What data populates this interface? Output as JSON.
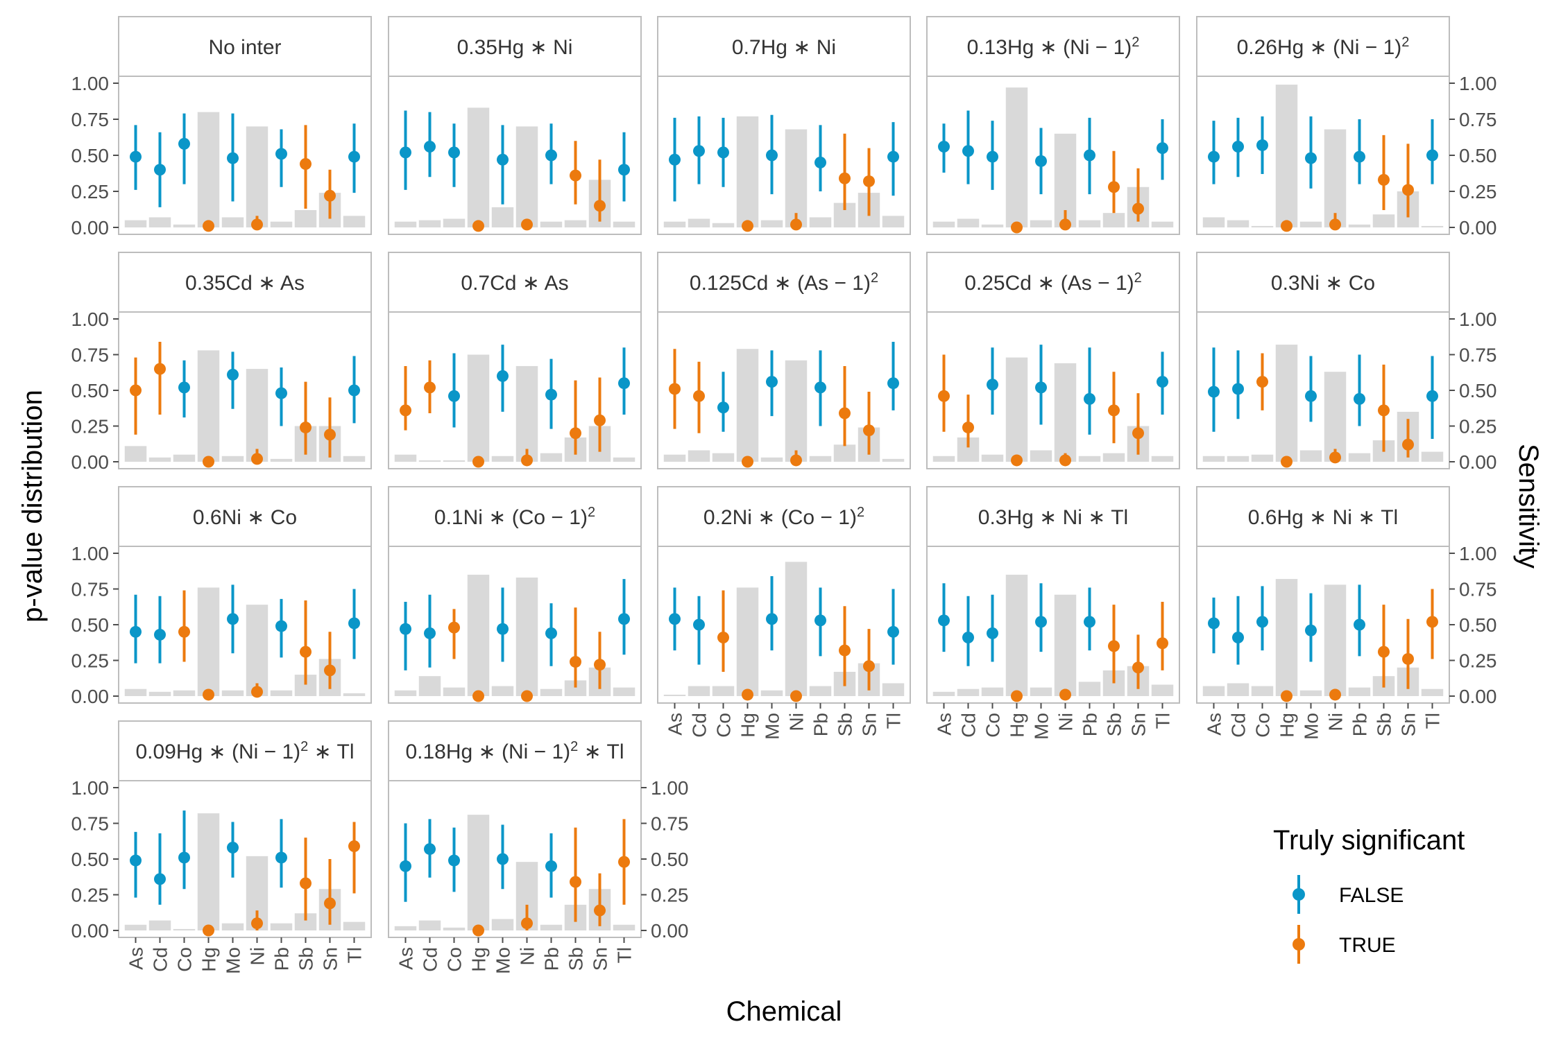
{
  "chart_data": {
    "type": "faceted point-range with bars",
    "ylabel": "p-value distribution",
    "y2label": "Sensitivity",
    "xlabel": "Chemical",
    "ylim": [
      0,
      1
    ],
    "yticks": [
      "0.00",
      "0.25",
      "0.50",
      "0.75",
      "1.00"
    ],
    "categories": [
      "As",
      "Cd",
      "Co",
      "Hg",
      "Mo",
      "Ni",
      "Pb",
      "Sb",
      "Sn",
      "Tl"
    ],
    "colors": {
      "FALSE": "#0a96c8",
      "TRUE": "#ec7a0e",
      "bar": "#d9d9d9"
    },
    "legend": {
      "title": "Truly significant",
      "position": "bottom-right",
      "entries": [
        {
          "key": "FALSE",
          "label": "FALSE"
        },
        {
          "key": "TRUE",
          "label": "TRUE"
        }
      ]
    },
    "panels": [
      {
        "title": [
          "No inter"
        ],
        "sig": [
          0,
          0,
          0,
          1,
          0,
          1,
          0,
          1,
          1,
          0
        ],
        "mid": [
          0.49,
          0.4,
          0.58,
          0.01,
          0.48,
          0.02,
          0.51,
          0.44,
          0.22,
          0.49
        ],
        "lo": [
          0.26,
          0.14,
          0.3,
          0.0,
          0.18,
          0.0,
          0.28,
          0.13,
          0.06,
          0.24
        ],
        "hi": [
          0.71,
          0.66,
          0.79,
          0.03,
          0.79,
          0.08,
          0.68,
          0.71,
          0.4,
          0.72
        ],
        "bar": [
          0.05,
          0.07,
          0.02,
          0.8,
          0.07,
          0.7,
          0.04,
          0.12,
          0.24,
          0.08
        ]
      },
      {
        "title": [
          "0.35Hg ∗ Ni"
        ],
        "sig": [
          0,
          0,
          0,
          1,
          0,
          1,
          0,
          1,
          1,
          0
        ],
        "mid": [
          0.52,
          0.56,
          0.52,
          0.01,
          0.47,
          0.02,
          0.5,
          0.36,
          0.15,
          0.4
        ],
        "lo": [
          0.26,
          0.35,
          0.28,
          0.0,
          0.16,
          0.0,
          0.3,
          0.16,
          0.04,
          0.18
        ],
        "hi": [
          0.81,
          0.8,
          0.72,
          0.02,
          0.71,
          0.06,
          0.72,
          0.6,
          0.47,
          0.66
        ],
        "bar": [
          0.04,
          0.05,
          0.06,
          0.83,
          0.14,
          0.7,
          0.04,
          0.05,
          0.33,
          0.04
        ]
      },
      {
        "title": [
          "0.7Hg ∗ Ni"
        ],
        "sig": [
          0,
          0,
          0,
          1,
          0,
          1,
          0,
          1,
          1,
          0
        ],
        "mid": [
          0.47,
          0.53,
          0.52,
          0.01,
          0.5,
          0.02,
          0.45,
          0.34,
          0.32,
          0.49
        ],
        "lo": [
          0.18,
          0.3,
          0.28,
          0.0,
          0.23,
          0.0,
          0.25,
          0.12,
          0.08,
          0.22
        ],
        "hi": [
          0.76,
          0.77,
          0.76,
          0.02,
          0.78,
          0.1,
          0.71,
          0.65,
          0.55,
          0.73
        ],
        "bar": [
          0.04,
          0.06,
          0.03,
          0.77,
          0.05,
          0.68,
          0.07,
          0.17,
          0.24,
          0.08
        ]
      },
      {
        "title": [
          "0.13Hg ∗ (Ni − 1)",
          "2"
        ],
        "sig": [
          0,
          0,
          0,
          1,
          0,
          1,
          0,
          1,
          1,
          0
        ],
        "mid": [
          0.56,
          0.53,
          0.49,
          0.0,
          0.46,
          0.02,
          0.5,
          0.28,
          0.13,
          0.55
        ],
        "lo": [
          0.38,
          0.3,
          0.26,
          0.0,
          0.23,
          0.0,
          0.23,
          0.1,
          0.04,
          0.33
        ],
        "hi": [
          0.72,
          0.81,
          0.74,
          0.02,
          0.69,
          0.12,
          0.76,
          0.53,
          0.41,
          0.75
        ],
        "bar": [
          0.04,
          0.06,
          0.02,
          0.97,
          0.05,
          0.65,
          0.05,
          0.1,
          0.28,
          0.04
        ]
      },
      {
        "title": [
          "0.26Hg ∗ (Ni − 1)",
          "2"
        ],
        "sig": [
          0,
          0,
          0,
          1,
          0,
          1,
          0,
          1,
          1,
          0
        ],
        "mid": [
          0.49,
          0.56,
          0.57,
          0.01,
          0.48,
          0.02,
          0.49,
          0.33,
          0.26,
          0.5
        ],
        "lo": [
          0.3,
          0.35,
          0.37,
          0.0,
          0.27,
          0.0,
          0.3,
          0.12,
          0.07,
          0.3
        ],
        "hi": [
          0.74,
          0.76,
          0.77,
          0.02,
          0.77,
          0.1,
          0.75,
          0.64,
          0.58,
          0.75
        ],
        "bar": [
          0.07,
          0.05,
          0.01,
          0.99,
          0.04,
          0.68,
          0.02,
          0.09,
          0.25,
          0.01
        ]
      },
      {
        "title": [
          "0.35Cd ∗ As"
        ],
        "sig": [
          1,
          1,
          0,
          1,
          0,
          1,
          0,
          1,
          1,
          0
        ],
        "mid": [
          0.5,
          0.65,
          0.52,
          0.0,
          0.61,
          0.02,
          0.48,
          0.24,
          0.19,
          0.5
        ],
        "lo": [
          0.19,
          0.33,
          0.31,
          0.0,
          0.37,
          0.0,
          0.25,
          0.05,
          0.03,
          0.27
        ],
        "hi": [
          0.73,
          0.84,
          0.71,
          0.02,
          0.77,
          0.09,
          0.66,
          0.56,
          0.45,
          0.74
        ],
        "bar": [
          0.11,
          0.03,
          0.05,
          0.78,
          0.04,
          0.65,
          0.02,
          0.25,
          0.25,
          0.04
        ]
      },
      {
        "title": [
          "0.7Cd ∗ As"
        ],
        "sig": [
          1,
          1,
          0,
          1,
          0,
          1,
          0,
          1,
          1,
          0
        ],
        "mid": [
          0.36,
          0.52,
          0.46,
          0.0,
          0.6,
          0.01,
          0.47,
          0.2,
          0.29,
          0.55
        ],
        "lo": [
          0.22,
          0.34,
          0.24,
          0.0,
          0.35,
          0.0,
          0.23,
          0.05,
          0.07,
          0.33
        ],
        "hi": [
          0.67,
          0.71,
          0.76,
          0.02,
          0.82,
          0.09,
          0.72,
          0.57,
          0.59,
          0.8
        ],
        "bar": [
          0.05,
          0.01,
          0.01,
          0.75,
          0.04,
          0.67,
          0.06,
          0.17,
          0.25,
          0.03
        ]
      },
      {
        "title": [
          "0.125Cd ∗ (As − 1)",
          "2"
        ],
        "sig": [
          1,
          1,
          0,
          1,
          0,
          1,
          0,
          1,
          1,
          0
        ],
        "mid": [
          0.51,
          0.46,
          0.38,
          0.0,
          0.56,
          0.01,
          0.52,
          0.34,
          0.22,
          0.55
        ],
        "lo": [
          0.23,
          0.2,
          0.21,
          0.0,
          0.32,
          0.0,
          0.25,
          0.11,
          0.05,
          0.36
        ],
        "hi": [
          0.79,
          0.7,
          0.63,
          0.02,
          0.78,
          0.08,
          0.78,
          0.67,
          0.49,
          0.84
        ],
        "bar": [
          0.05,
          0.08,
          0.06,
          0.79,
          0.03,
          0.71,
          0.04,
          0.12,
          0.24,
          0.02
        ]
      },
      {
        "title": [
          "0.25Cd ∗ (As − 1)",
          "2"
        ],
        "sig": [
          1,
          1,
          0,
          1,
          0,
          1,
          0,
          1,
          1,
          0
        ],
        "mid": [
          0.46,
          0.24,
          0.54,
          0.01,
          0.52,
          0.01,
          0.44,
          0.36,
          0.2,
          0.56
        ],
        "lo": [
          0.21,
          0.1,
          0.33,
          0.0,
          0.26,
          0.0,
          0.19,
          0.13,
          0.05,
          0.33
        ],
        "hi": [
          0.75,
          0.47,
          0.8,
          0.03,
          0.82,
          0.06,
          0.8,
          0.63,
          0.48,
          0.77
        ],
        "bar": [
          0.04,
          0.17,
          0.05,
          0.73,
          0.08,
          0.69,
          0.04,
          0.06,
          0.25,
          0.04
        ]
      },
      {
        "title": [
          "0.3Ni ∗ Co"
        ],
        "sig": [
          0,
          0,
          1,
          1,
          0,
          1,
          0,
          1,
          1,
          0
        ],
        "mid": [
          0.49,
          0.51,
          0.56,
          0.0,
          0.46,
          0.03,
          0.44,
          0.36,
          0.12,
          0.46
        ],
        "lo": [
          0.21,
          0.3,
          0.36,
          0.0,
          0.28,
          0.0,
          0.25,
          0.07,
          0.03,
          0.16
        ],
        "hi": [
          0.8,
          0.78,
          0.76,
          0.02,
          0.74,
          0.09,
          0.75,
          0.68,
          0.3,
          0.74
        ],
        "bar": [
          0.04,
          0.04,
          0.05,
          0.82,
          0.08,
          0.63,
          0.06,
          0.15,
          0.35,
          0.07
        ]
      },
      {
        "title": [
          "0.6Ni ∗ Co"
        ],
        "sig": [
          0,
          0,
          1,
          1,
          0,
          1,
          0,
          1,
          1,
          0
        ],
        "mid": [
          0.45,
          0.43,
          0.45,
          0.01,
          0.54,
          0.03,
          0.49,
          0.31,
          0.18,
          0.51
        ],
        "lo": [
          0.23,
          0.23,
          0.24,
          0.0,
          0.3,
          0.0,
          0.27,
          0.08,
          0.05,
          0.26
        ],
        "hi": [
          0.71,
          0.7,
          0.74,
          0.03,
          0.78,
          0.09,
          0.68,
          0.67,
          0.45,
          0.75
        ],
        "bar": [
          0.05,
          0.03,
          0.04,
          0.76,
          0.04,
          0.64,
          0.04,
          0.15,
          0.26,
          0.02
        ]
      },
      {
        "title": [
          "0.1Ni ∗ (Co − 1)",
          "2"
        ],
        "sig": [
          0,
          0,
          1,
          1,
          0,
          1,
          0,
          1,
          1,
          0
        ],
        "mid": [
          0.47,
          0.44,
          0.48,
          0.0,
          0.47,
          0.0,
          0.44,
          0.24,
          0.22,
          0.54
        ],
        "lo": [
          0.18,
          0.2,
          0.26,
          0.0,
          0.24,
          0.0,
          0.21,
          0.06,
          0.05,
          0.29
        ],
        "hi": [
          0.66,
          0.71,
          0.61,
          0.01,
          0.76,
          0.04,
          0.65,
          0.62,
          0.45,
          0.82
        ],
        "bar": [
          0.04,
          0.14,
          0.06,
          0.85,
          0.07,
          0.83,
          0.05,
          0.11,
          0.2,
          0.06
        ]
      },
      {
        "title": [
          "0.2Ni ∗ (Co − 1)",
          "2"
        ],
        "sig": [
          0,
          0,
          1,
          1,
          0,
          1,
          0,
          1,
          1,
          0
        ],
        "mid": [
          0.54,
          0.5,
          0.41,
          0.01,
          0.54,
          0.0,
          0.53,
          0.32,
          0.21,
          0.45
        ],
        "lo": [
          0.32,
          0.22,
          0.17,
          0.0,
          0.32,
          0.0,
          0.28,
          0.07,
          0.04,
          0.22
        ],
        "hi": [
          0.76,
          0.7,
          0.74,
          0.03,
          0.84,
          0.02,
          0.76,
          0.63,
          0.47,
          0.75
        ],
        "bar": [
          0.01,
          0.07,
          0.07,
          0.76,
          0.04,
          0.94,
          0.07,
          0.17,
          0.23,
          0.09
        ]
      },
      {
        "title": [
          "0.3Hg ∗ Ni ∗ Tl"
        ],
        "sig": [
          0,
          0,
          0,
          1,
          0,
          1,
          0,
          1,
          1,
          1
        ],
        "mid": [
          0.53,
          0.41,
          0.44,
          0.0,
          0.52,
          0.01,
          0.52,
          0.35,
          0.2,
          0.37
        ],
        "lo": [
          0.31,
          0.21,
          0.24,
          0.0,
          0.31,
          0.0,
          0.32,
          0.09,
          0.05,
          0.18
        ],
        "hi": [
          0.79,
          0.7,
          0.71,
          0.02,
          0.79,
          0.05,
          0.76,
          0.64,
          0.43,
          0.66
        ],
        "bar": [
          0.03,
          0.05,
          0.06,
          0.85,
          0.06,
          0.71,
          0.1,
          0.18,
          0.21,
          0.08
        ]
      },
      {
        "title": [
          "0.6Hg ∗ Ni ∗ Tl"
        ],
        "sig": [
          0,
          0,
          0,
          1,
          0,
          1,
          0,
          1,
          1,
          1
        ],
        "mid": [
          0.51,
          0.41,
          0.52,
          0.0,
          0.46,
          0.01,
          0.5,
          0.31,
          0.26,
          0.52
        ],
        "lo": [
          0.3,
          0.22,
          0.32,
          0.0,
          0.24,
          0.0,
          0.28,
          0.06,
          0.05,
          0.26
        ],
        "hi": [
          0.69,
          0.7,
          0.77,
          0.02,
          0.72,
          0.05,
          0.78,
          0.64,
          0.54,
          0.75
        ],
        "bar": [
          0.07,
          0.09,
          0.07,
          0.82,
          0.04,
          0.78,
          0.06,
          0.14,
          0.2,
          0.05
        ]
      },
      {
        "title": [
          "0.09Hg ∗ (Ni − 1)",
          "2",
          " ∗ Tl"
        ],
        "sig": [
          0,
          0,
          0,
          1,
          0,
          1,
          0,
          1,
          1,
          1
        ],
        "mid": [
          0.49,
          0.36,
          0.51,
          0.0,
          0.58,
          0.05,
          0.51,
          0.33,
          0.19,
          0.59
        ],
        "lo": [
          0.23,
          0.18,
          0.29,
          0.0,
          0.37,
          0.0,
          0.3,
          0.07,
          0.04,
          0.26
        ],
        "hi": [
          0.69,
          0.68,
          0.84,
          0.02,
          0.76,
          0.14,
          0.78,
          0.65,
          0.5,
          0.76
        ],
        "bar": [
          0.04,
          0.07,
          0.01,
          0.82,
          0.05,
          0.52,
          0.05,
          0.12,
          0.29,
          0.06
        ]
      },
      {
        "title": [
          "0.18Hg ∗ (Ni − 1)",
          "2",
          " ∗ Tl"
        ],
        "sig": [
          0,
          0,
          0,
          1,
          0,
          1,
          0,
          1,
          1,
          1
        ],
        "mid": [
          0.45,
          0.57,
          0.49,
          0.0,
          0.5,
          0.05,
          0.45,
          0.34,
          0.14,
          0.48
        ],
        "lo": [
          0.2,
          0.37,
          0.27,
          0.0,
          0.29,
          0.0,
          0.23,
          0.06,
          0.03,
          0.18
        ],
        "hi": [
          0.75,
          0.78,
          0.72,
          0.02,
          0.74,
          0.18,
          0.68,
          0.72,
          0.4,
          0.78
        ],
        "bar": [
          0.03,
          0.07,
          0.02,
          0.81,
          0.08,
          0.48,
          0.04,
          0.18,
          0.29,
          0.04
        ]
      }
    ]
  }
}
